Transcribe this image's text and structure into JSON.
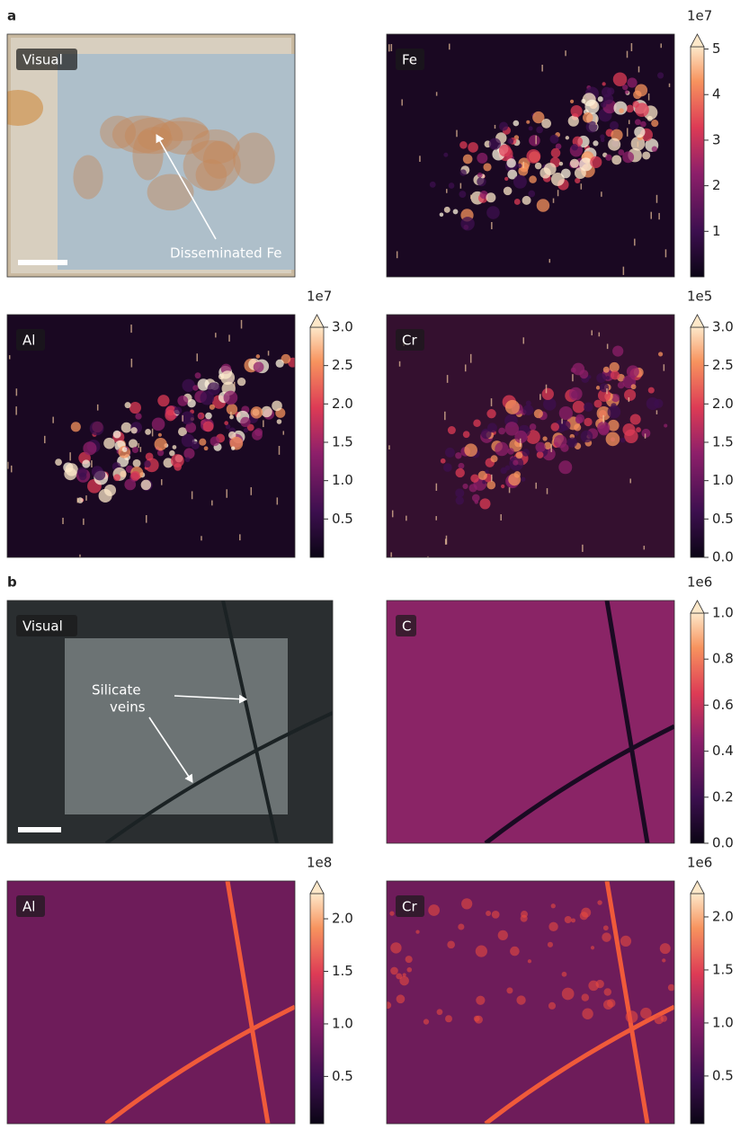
{
  "figure": {
    "panels": [
      {
        "label": "a",
        "images": [
          {
            "title": "Visual",
            "annotation": [
              "Disseminated Fe"
            ]
          },
          {
            "title": "Fe",
            "colorbar": {
              "exponent": "1e7",
              "lim": [
                0,
                5.05
              ],
              "ticks": [
                1,
                2,
                3,
                4,
                5
              ]
            }
          },
          {
            "title": "Al",
            "colorbar": {
              "exponent": "1e7",
              "lim": [
                0,
                3.0
              ],
              "ticks": [
                0.5,
                {
                  "value": 1,
                  "label": "1.0"
                },
                1.5,
                {
                  "value": 2,
                  "label": "2.0"
                },
                2.5,
                {
                  "value": 3,
                  "label": "3.0"
                }
              ]
            }
          },
          {
            "title": "Cr",
            "colorbar": {
              "exponent": "1e5",
              "lim": [
                0,
                3.0
              ],
              "ticks": [
                {
                  "value": 0,
                  "label": "0.0"
                },
                0.5,
                {
                  "value": 1,
                  "label": "1.0"
                },
                1.5,
                {
                  "value": 2,
                  "label": "2.0"
                },
                2.5,
                {
                  "value": 3,
                  "label": "3.0"
                }
              ]
            }
          }
        ]
      },
      {
        "label": "b",
        "images": [
          {
            "title": "Visual",
            "annotation": [
              "Silicate",
              "veins"
            ]
          },
          {
            "title": "C",
            "colorbar": {
              "exponent": "1e6",
              "lim": [
                0,
                1.0
              ],
              "ticks": [
                {
                  "value": 0,
                  "label": "0.0"
                },
                0.2,
                0.4,
                0.6,
                0.8,
                {
                  "value": 1,
                  "label": "1.0"
                }
              ]
            }
          },
          {
            "title": "Al",
            "colorbar": {
              "exponent": "1e8",
              "lim": [
                0.05,
                2.24
              ],
              "ticks": [
                0.5,
                {
                  "value": 1,
                  "label": "1.0"
                },
                1.5,
                {
                  "value": 2,
                  "label": "2.0"
                }
              ]
            }
          },
          {
            "title": "Cr",
            "colorbar": {
              "exponent": "1e6",
              "lim": [
                0.05,
                2.22
              ],
              "ticks": [
                0.5,
                {
                  "value": 1,
                  "label": "1.0"
                },
                1.5,
                {
                  "value": 2,
                  "label": "2.0"
                }
              ]
            }
          }
        ]
      }
    ]
  }
}
